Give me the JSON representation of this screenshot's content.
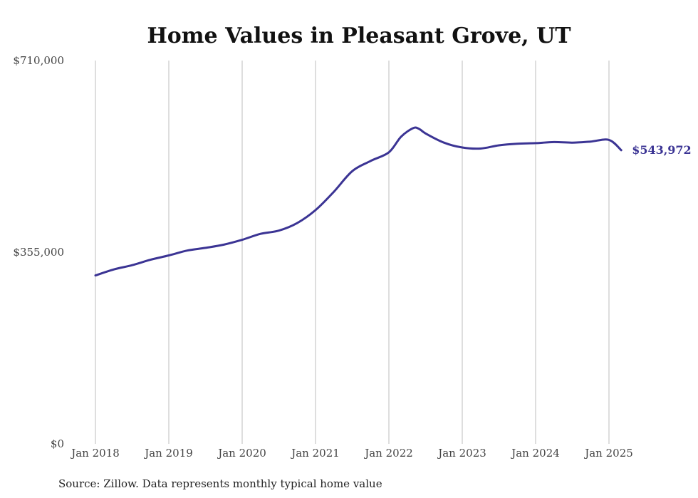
{
  "chart_data": {
    "type": "line",
    "title": "Home Values in Pleasant Grove, UT",
    "xlabel": "",
    "ylabel": "",
    "ylim": [
      0,
      710000
    ],
    "y_ticks": [
      {
        "value": 0,
        "label": "$0"
      },
      {
        "value": 355000,
        "label": "$355,000"
      },
      {
        "value": 710000,
        "label": "$710,000"
      }
    ],
    "x_ticks": [
      {
        "value": "2018-01",
        "label": "Jan 2018"
      },
      {
        "value": "2019-01",
        "label": "Jan 2019"
      },
      {
        "value": "2020-01",
        "label": "Jan 2020"
      },
      {
        "value": "2021-01",
        "label": "Jan 2021"
      },
      {
        "value": "2022-01",
        "label": "Jan 2022"
      },
      {
        "value": "2023-01",
        "label": "Jan 2023"
      },
      {
        "value": "2024-01",
        "label": "Jan 2024"
      },
      {
        "value": "2025-01",
        "label": "Jan 2025"
      }
    ],
    "grid": {
      "vertical": true,
      "horizontal": false
    },
    "line_color": "#3b3494",
    "series": [
      {
        "name": "",
        "x": [
          "2018-01",
          "2018-04",
          "2018-07",
          "2018-10",
          "2019-01",
          "2019-04",
          "2019-07",
          "2019-10",
          "2020-01",
          "2020-04",
          "2020-07",
          "2020-10",
          "2021-01",
          "2021-04",
          "2021-07",
          "2021-10",
          "2022-01",
          "2022-03",
          "2022-05",
          "2022-06",
          "2022-07",
          "2022-10",
          "2023-01",
          "2023-04",
          "2023-07",
          "2023-10",
          "2024-01",
          "2024-04",
          "2024-07",
          "2024-10",
          "2025-01",
          "2025-03"
        ],
        "values": [
          312000,
          323000,
          331000,
          341000,
          349000,
          358000,
          363000,
          369000,
          378000,
          389000,
          395000,
          409000,
          433000,
          467000,
          505000,
          524000,
          540000,
          569000,
          585000,
          583000,
          575000,
          558000,
          549000,
          547000,
          553000,
          556000,
          557000,
          559000,
          558000,
          560000,
          563000,
          543972
        ]
      }
    ],
    "end_label": "$543,972"
  },
  "footer": {
    "source": "Source: Zillow. Data represents monthly typical home value"
  }
}
